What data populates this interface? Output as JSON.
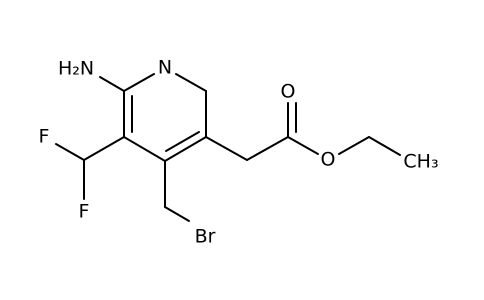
{
  "nodes": [
    {
      "label": "H₂N"
    },
    {
      "label": "N"
    },
    {
      "label": "F"
    },
    {
      "label": "F"
    },
    {
      "label": "Br"
    },
    {
      "label": "O"
    },
    {
      "label": "O"
    },
    {
      "label": "CH₃"
    }
  ]
}
